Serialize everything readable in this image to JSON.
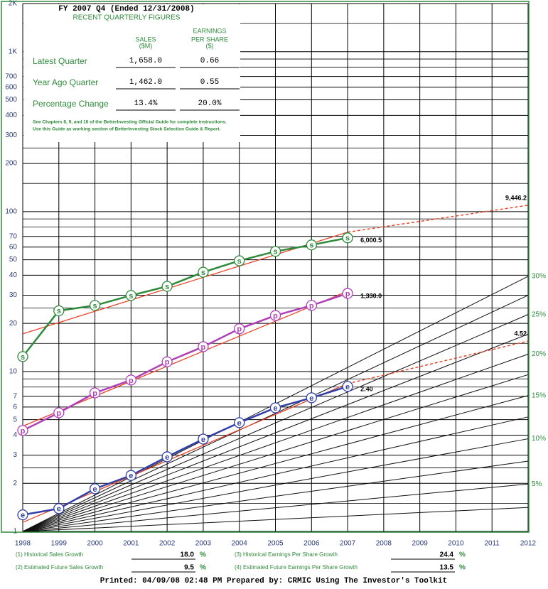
{
  "chart_data": {
    "type": "line",
    "title": "FY 2007 Q4 (Ended 12/31/2008)",
    "subtitle": "RECENT QUARTERLY FIGURES",
    "log": true,
    "x": [
      1998,
      1999,
      2000,
      2001,
      2002,
      2003,
      2004,
      2005,
      2006,
      2007,
      2008,
      2009,
      2010,
      2011,
      2012
    ],
    "xlim": [
      1998,
      2012
    ],
    "ylim": [
      1,
      2000
    ],
    "yticks": [
      1,
      2,
      3,
      4,
      5,
      6,
      7,
      10,
      20,
      30,
      40,
      50,
      60,
      70,
      100,
      200,
      300,
      400,
      500,
      600,
      700,
      {
        "value": 1000,
        "label": "1K"
      },
      {
        "value": 2000,
        "label": "2K"
      }
    ],
    "yminor": [
      1.5,
      2.5,
      8,
      9,
      15,
      25,
      80,
      90,
      150,
      250,
      800,
      900,
      1500
    ],
    "series": [
      {
        "marker": "s",
        "color": "#2e8b3a",
        "end_label": "6,000.5",
        "values": [
          12.4,
          24.0,
          25.9,
          29.9,
          34.1,
          41.8,
          49.3,
          56.4,
          61.9,
          68.5,
          null,
          null,
          null,
          null,
          null
        ]
      },
      {
        "marker": "p",
        "color": "#b040b8",
        "end_label": "1,330.0",
        "values": [
          4.28,
          5.52,
          7.35,
          8.85,
          11.5,
          14.3,
          18.5,
          22.4,
          25.9,
          30.8,
          null,
          null,
          null,
          null,
          null
        ]
      },
      {
        "marker": "e",
        "color": "#3040a8",
        "end_label": "2.40",
        "values": [
          1.27,
          1.39,
          1.85,
          2.24,
          2.93,
          3.78,
          4.79,
          5.93,
          6.85,
          8.07,
          null,
          null,
          null,
          null,
          null
        ]
      }
    ],
    "trend_color": "#e8452a",
    "trends": [
      {
        "x": [
          1998,
          2007,
          2012
        ],
        "values": [
          17.2,
          74.4,
          109.6
        ],
        "end_label": "9,446.2"
      },
      {
        "x": [
          1998,
          2007
        ],
        "values": [
          4.55,
          31.8
        ]
      },
      {
        "x": [
          1998,
          2007,
          2012
        ],
        "values": [
          1.14,
          8.4,
          15.5
        ],
        "end_label": "4.52"
      }
    ],
    "growth_lines": [
      {
        "rate": 2.5
      },
      {
        "rate": 5,
        "label": "5%"
      },
      {
        "rate": 7.5
      },
      {
        "rate": 10,
        "label": "10%"
      },
      {
        "rate": 12.5
      },
      {
        "rate": 15,
        "label": "15%"
      },
      {
        "rate": 17.5
      },
      {
        "rate": 20,
        "label": "20%"
      },
      {
        "rate": 22.5
      },
      {
        "rate": 25,
        "label": "25%"
      },
      {
        "rate": 27.5
      },
      {
        "rate": 30,
        "label": "30%"
      }
    ],
    "panel": {
      "headers": [
        [
          "SALES",
          "($M)"
        ],
        [
          "EARNINGS",
          "PER SHARE",
          "($)"
        ]
      ],
      "rows": [
        {
          "label": "Latest Quarter",
          "cells": [
            "1,658.0",
            "0.66"
          ]
        },
        {
          "label": "Year Ago Quarter",
          "cells": [
            "1,462.0",
            "0.55"
          ]
        },
        {
          "label": "Percentage Change",
          "cells": [
            "13.4%",
            "20.0%"
          ]
        }
      ],
      "notes": [
        "See Chapters 8, 9, and 10 of the BetterInvesting Official Guide for complete instructions.",
        "Use this Guide as working section of BetterInvesting Stock Selection Guide & Report."
      ]
    },
    "growth": [
      {
        "label": "(1) Historical Sales Growth",
        "value": "18.0",
        "unit": "%"
      },
      {
        "label": "(2) Estimated Future Sales Growth",
        "value": "9.5",
        "unit": "%"
      },
      {
        "label": "(3) Historical Earnings Per Share Growth",
        "value": "24.4",
        "unit": "%"
      },
      {
        "label": "(4) Estimated Future Earnings Per Share Growth",
        "value": "13.5",
        "unit": "%"
      }
    ],
    "footer": "Printed: 04/09/08 02:48 PM Prepared by: CRMIC  Using The Investor's Toolkit"
  }
}
